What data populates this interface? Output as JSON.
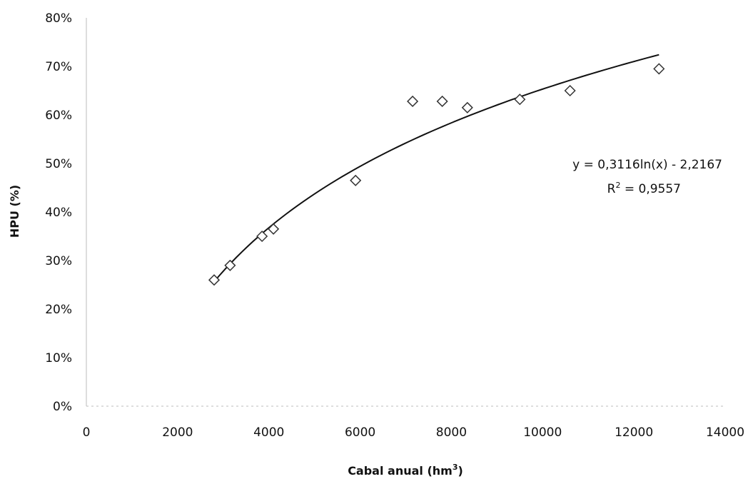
{
  "chart_data": {
    "type": "scatter",
    "title": "",
    "xlabel": "Cabal anual (hm",
    "xlabel_sup": "3",
    "xlabel_end": ")",
    "ylabel": "HPU (%)",
    "xlim": [
      0,
      14000
    ],
    "ylim": [
      0,
      0.8
    ],
    "x_ticks": [
      0,
      2000,
      4000,
      6000,
      8000,
      10000,
      12000,
      14000
    ],
    "y_ticks": [
      0,
      0.1,
      0.2,
      0.3,
      0.4,
      0.5,
      0.6,
      0.7,
      0.8
    ],
    "x_tick_labels": [
      "0",
      "2000",
      "4000",
      "6000",
      "8000",
      "10000",
      "12000",
      "14000"
    ],
    "y_tick_labels": [
      "0%",
      "10%",
      "20%",
      "30%",
      "40%",
      "50%",
      "60%",
      "70%",
      "80%"
    ],
    "grid": false,
    "legend": "none",
    "series": [
      {
        "marker": "diamond-open",
        "points": [
          {
            "x": 2800,
            "y": 0.26
          },
          {
            "x": 3150,
            "y": 0.29
          },
          {
            "x": 3850,
            "y": 0.35
          },
          {
            "x": 4100,
            "y": 0.365
          },
          {
            "x": 5900,
            "y": 0.465
          },
          {
            "x": 7150,
            "y": 0.628
          },
          {
            "x": 7800,
            "y": 0.628
          },
          {
            "x": 8350,
            "y": 0.615
          },
          {
            "x": 9500,
            "y": 0.632
          },
          {
            "x": 10600,
            "y": 0.65
          },
          {
            "x": 12550,
            "y": 0.695
          }
        ]
      }
    ],
    "trendline": {
      "type": "logarithmic",
      "a": 0.3116,
      "b": -2.2167,
      "x_range": [
        2800,
        12550
      ],
      "equation_label": "y = 0,3116ln(x) - 2,2167",
      "r2_label_prefix": "R",
      "r2_label_sup": "2",
      "r2_label_suffix": " = 0,9557"
    }
  }
}
